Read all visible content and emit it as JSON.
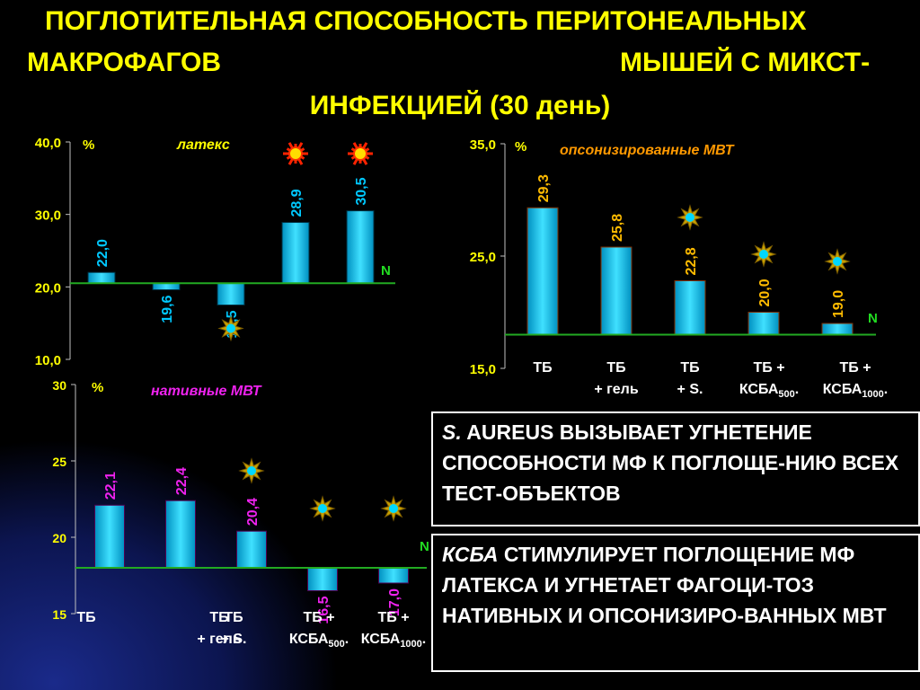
{
  "title": {
    "line1": "ПОГЛОТИТЕЛЬНАЯ СПОСОБНОСТЬ ПЕРИТОНЕАЛЬНЫХ",
    "line2a": "МАКРОФАГОВ",
    "line2b": "МЫШЕЙ С МИКСТ-",
    "line3": "ИНФЕКЦИЕЙ (30 день)"
  },
  "colors": {
    "background": "#000000",
    "title": "#ffff00",
    "latex_bar": "#00bfff",
    "opson_bar": "#ff9900",
    "native_bar": "#ee22ee",
    "norm_line": "#22aa22",
    "axis_label": "#ffff00"
  },
  "chart_data": [
    {
      "type": "bar",
      "title": "латекс",
      "ylabel": "%",
      "ylim": [
        10,
        40
      ],
      "yticks": [
        "10,0",
        "20,0",
        "30,0",
        "40,0"
      ],
      "baseline": 20.5,
      "baseline_label": "N",
      "values": [
        22.0,
        19.6,
        17.5,
        28.9,
        30.5
      ],
      "value_labels": [
        "22,0",
        "19,6",
        "17,5",
        "28,9",
        "30,5"
      ],
      "markers": [
        "",
        "",
        "star",
        "sun",
        "sun"
      ]
    },
    {
      "type": "bar",
      "title": "опсонизированные МВТ",
      "ylabel": "%",
      "ylim": [
        15,
        35
      ],
      "yticks": [
        "15,0",
        "25,0",
        "35,0"
      ],
      "baseline": 18,
      "baseline_label": "N",
      "categories": [
        "ТБ",
        "ТБ + гель",
        "ТБ + S.",
        "ТБ + КСБА500.",
        "ТБ + КСБА1000."
      ],
      "category_lines": [
        [
          "ТБ"
        ],
        [
          "ТБ",
          "+ гель"
        ],
        [
          "ТБ",
          "+ S."
        ],
        [
          "ТБ +",
          "КСБА",
          "500",
          "."
        ],
        [
          "ТБ +",
          "КСБА",
          "1000",
          "."
        ]
      ],
      "values": [
        29.3,
        25.8,
        22.8,
        20.0,
        19.0
      ],
      "value_labels": [
        "29,3",
        "25,8",
        "22,8",
        "20,0",
        "19,0"
      ],
      "markers": [
        "",
        "",
        "star",
        "star",
        "star"
      ]
    },
    {
      "type": "bar",
      "title": "нативные МВТ",
      "ylabel": "%",
      "ylim": [
        15,
        30
      ],
      "yticks": [
        "15",
        "20",
        "25",
        "30"
      ],
      "baseline": 18,
      "baseline_label": "N",
      "categories": [
        "ТБ",
        "ТБ + гель",
        "ТБ + S.",
        "ТБ + КСБА500.",
        "ТБ + КСБА1000."
      ],
      "category_lines": [
        [
          "ТБ"
        ],
        [
          "ТБ",
          "+ гель"
        ],
        [
          "ТБ",
          "+ S."
        ],
        [
          "ТБ +",
          "КСБА",
          "500",
          "."
        ],
        [
          "ТБ +",
          "КСБА",
          "1000",
          "."
        ]
      ],
      "values": [
        22.1,
        22.4,
        20.4,
        16.5,
        17.0
      ],
      "value_labels": [
        "22,1",
        "22,4",
        "20,4",
        "16,5",
        "17,0"
      ],
      "markers": [
        "",
        "",
        "star",
        "star",
        "star"
      ]
    }
  ],
  "notes": {
    "note1_italic": "S.",
    "note1_text": " AUREUS ВЫЗЫВАЕТ УГНЕТЕНИЕ СПОСОБНОСТИ МФ К ПОГЛОЩЕ-НИЮ ВСЕХ ТЕСТ-ОБЪЕКТОВ",
    "note2_italic": "КСБА",
    "note2_text": " СТИМУЛИРУЕТ ПОГЛОЩЕНИЕ МФ ЛАТЕКСА И УГНЕТАЕТ ФАГОЦИ-ТОЗ НАТИВНЫХ И ОПСОНИЗИРО-ВАННЫХ МВТ"
  }
}
